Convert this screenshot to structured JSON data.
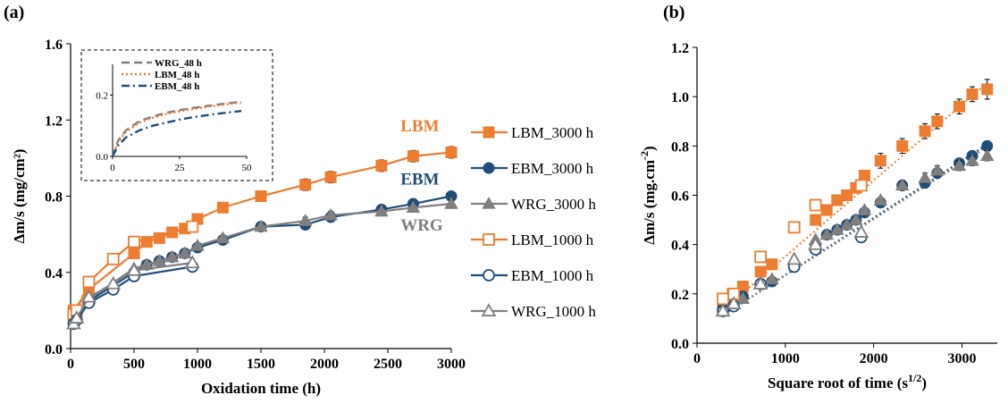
{
  "colors": {
    "LBM": "#ED7D31",
    "EBM": "#1F4E79",
    "WRG": "#7F7F7F",
    "axis": "#000000"
  },
  "chart_data": [
    {
      "panel_label": "(a)",
      "type": "scatter",
      "xlabel": "Oxidation time (h)",
      "ylabel": "Δm/s (mg/cm²)",
      "xlim": [
        0,
        3000
      ],
      "ylim": [
        0,
        1.6
      ],
      "xticks": [
        0,
        500,
        1000,
        1500,
        2000,
        2500,
        3000
      ],
      "yticks": [
        0.0,
        0.4,
        0.8,
        1.2,
        1.6
      ],
      "ytick_labels": [
        "0.0",
        "0.4",
        "0.8",
        "1.2",
        "1.6"
      ],
      "grid": false,
      "legend_position": "right",
      "annotations": [
        {
          "text": "LBM",
          "x": 2600,
          "y": 1.14,
          "color_key": "LBM"
        },
        {
          "text": "EBM",
          "x": 2600,
          "y": 0.86,
          "color_key": "EBM"
        },
        {
          "text": "WRG",
          "x": 2600,
          "y": 0.62,
          "color_key": "WRG"
        }
      ],
      "series": [
        {
          "name": "LBM_3000 h",
          "color_key": "LBM",
          "marker": "square-filled",
          "line": "solid",
          "x": [
            24,
            144,
            500,
            600,
            700,
            800,
            900,
            1000,
            1200,
            1500,
            1850,
            2050,
            2450,
            2700,
            3000
          ],
          "y": [
            0.2,
            0.31,
            0.5,
            0.56,
            0.58,
            0.61,
            0.63,
            0.68,
            0.74,
            0.8,
            0.86,
            0.9,
            0.96,
            1.01,
            1.03
          ],
          "err": [
            0,
            0.02,
            0.02,
            0.02,
            0.02,
            0.02,
            0.02,
            0.02,
            0.02,
            0.02,
            0.03,
            0.03,
            0.03,
            0.03,
            0.03
          ]
        },
        {
          "name": "EBM_3000 h",
          "color_key": "EBM",
          "marker": "circle-filled",
          "line": "solid",
          "x": [
            24,
            144,
            500,
            600,
            700,
            800,
            900,
            1000,
            1200,
            1500,
            1850,
            2050,
            2450,
            2700,
            3000
          ],
          "y": [
            0.14,
            0.25,
            0.4,
            0.44,
            0.46,
            0.48,
            0.5,
            0.53,
            0.57,
            0.64,
            0.65,
            0.69,
            0.73,
            0.76,
            0.8
          ],
          "err": [
            0,
            0.01,
            0.01,
            0.01,
            0.01,
            0.01,
            0.01,
            0.01,
            0.01,
            0.01,
            0.02,
            0.02,
            0.02,
            0.02,
            0.02
          ]
        },
        {
          "name": "WRG_3000 h",
          "color_key": "WRG",
          "marker": "triangle-filled",
          "line": "solid",
          "x": [
            24,
            144,
            500,
            600,
            700,
            800,
            900,
            1000,
            1200,
            1500,
            1850,
            2050,
            2450,
            2700,
            3000
          ],
          "y": [
            0.13,
            0.26,
            0.42,
            0.44,
            0.46,
            0.48,
            0.5,
            0.54,
            0.58,
            0.64,
            0.67,
            0.7,
            0.72,
            0.74,
            0.76
          ],
          "err": [
            0,
            0.01,
            0.01,
            0.01,
            0.01,
            0.01,
            0.01,
            0.01,
            0.01,
            0.01,
            0.02,
            0.02,
            0.02,
            0.02,
            0.02
          ]
        },
        {
          "name": "LBM_1000 h",
          "color_key": "LBM",
          "marker": "square-open",
          "line": "solid",
          "x": [
            24,
            48,
            144,
            336,
            500,
            960
          ],
          "y": [
            0.18,
            0.2,
            0.35,
            0.47,
            0.56,
            0.64
          ],
          "err": [
            0.01,
            0.01,
            0.02,
            0.02,
            0.02,
            0.02
          ]
        },
        {
          "name": "EBM_1000 h",
          "color_key": "EBM",
          "marker": "circle-open",
          "line": "solid",
          "x": [
            24,
            48,
            144,
            336,
            500,
            960
          ],
          "y": [
            0.13,
            0.15,
            0.24,
            0.31,
            0.38,
            0.43
          ],
          "err": [
            0.01,
            0.01,
            0.01,
            0.01,
            0.01,
            0.01
          ]
        },
        {
          "name": "WRG_1000 h",
          "color_key": "WRG",
          "marker": "triangle-open",
          "line": "solid",
          "x": [
            24,
            48,
            144,
            336,
            500,
            960
          ],
          "y": [
            0.13,
            0.16,
            0.27,
            0.34,
            0.41,
            0.45
          ],
          "err": [
            0.01,
            0.01,
            0.01,
            0.01,
            0.01,
            0.01
          ]
        }
      ],
      "inset": {
        "type": "line",
        "xlim": [
          0,
          50
        ],
        "ylim": [
          0,
          0.3
        ],
        "xticks": [
          0,
          25,
          50
        ],
        "yticks": [
          0.0,
          0.2
        ],
        "ytick_labels": [
          "0.0",
          "0.2"
        ],
        "legend_position": "top",
        "series": [
          {
            "name": "WRG_48 h",
            "color_key": "WRG",
            "line": "dashed",
            "x": [
              0,
              2,
              5,
              10,
              15,
              20,
              25,
              30,
              35,
              40,
              48
            ],
            "y": [
              0.0,
              0.05,
              0.085,
              0.115,
              0.13,
              0.142,
              0.151,
              0.158,
              0.164,
              0.17,
              0.178
            ]
          },
          {
            "name": "LBM_48 h",
            "color_key": "LBM",
            "line": "dotted",
            "x": [
              0,
              2,
              5,
              10,
              15,
              20,
              25,
              30,
              35,
              40,
              48
            ],
            "y": [
              0.0,
              0.048,
              0.08,
              0.11,
              0.126,
              0.138,
              0.147,
              0.155,
              0.161,
              0.167,
              0.176
            ]
          },
          {
            "name": "EBM_48 h",
            "color_key": "EBM",
            "line": "dashdot",
            "x": [
              0,
              2,
              5,
              10,
              15,
              20,
              25,
              30,
              35,
              40,
              48
            ],
            "y": [
              0.0,
              0.035,
              0.062,
              0.085,
              0.1,
              0.11,
              0.12,
              0.128,
              0.134,
              0.14,
              0.148
            ]
          }
        ]
      }
    },
    {
      "panel_label": "(b)",
      "type": "scatter",
      "xlabel": "Square root of time (s",
      "xlabel_sup": "1/2",
      "xlabel_end": ")",
      "ylabel": "Δm/s (mg.cm",
      "ylabel_sup": "-2",
      "ylabel_end": ")",
      "xlim": [
        0,
        3400
      ],
      "ylim": [
        0,
        1.2
      ],
      "xticks": [
        0,
        1000,
        2000,
        3000
      ],
      "yticks": [
        0.0,
        0.2,
        0.4,
        0.6,
        0.8,
        1.0,
        1.2
      ],
      "ytick_labels": [
        "0.0",
        "0.2",
        "0.4",
        "0.6",
        "0.8",
        "1.0",
        "1.2"
      ],
      "grid": false,
      "series": [
        {
          "name": "LBM_3000 h",
          "color_key": "LBM",
          "marker": "square-filled",
          "x": [
            294,
            403,
            520,
            720,
            849,
            1342,
            1470,
            1587,
            1697,
            1800,
            1897,
            2078,
            2324,
            2581,
            2720,
            2970,
            3117,
            3286
          ],
          "y": [
            0.16,
            0.2,
            0.23,
            0.29,
            0.32,
            0.5,
            0.54,
            0.58,
            0.6,
            0.63,
            0.68,
            0.74,
            0.8,
            0.86,
            0.9,
            0.96,
            1.01,
            1.03
          ],
          "err": [
            0,
            0,
            0,
            0,
            0,
            0,
            0.02,
            0.02,
            0.02,
            0.02,
            0.02,
            0.03,
            0.03,
            0.03,
            0.03,
            0.03,
            0.03,
            0.04
          ]
        },
        {
          "name": "EBM_3000 h",
          "color_key": "EBM",
          "marker": "circle-filled",
          "x": [
            294,
            403,
            520,
            720,
            849,
            1342,
            1470,
            1587,
            1697,
            1800,
            1897,
            2078,
            2324,
            2581,
            2720,
            2970,
            3117,
            3286
          ],
          "y": [
            0.14,
            0.16,
            0.19,
            0.24,
            0.25,
            0.4,
            0.44,
            0.46,
            0.48,
            0.5,
            0.53,
            0.57,
            0.64,
            0.65,
            0.69,
            0.73,
            0.76,
            0.8
          ],
          "err": [
            0,
            0,
            0,
            0,
            0,
            0,
            0.01,
            0.01,
            0.01,
            0.01,
            0.01,
            0.01,
            0.02,
            0.02,
            0.02,
            0.02,
            0.02,
            0.02
          ]
        },
        {
          "name": "WRG_3000 h",
          "color_key": "WRG",
          "marker": "triangle-filled",
          "x": [
            294,
            403,
            520,
            720,
            849,
            1342,
            1470,
            1587,
            1697,
            1800,
            1897,
            2078,
            2324,
            2581,
            2720,
            2970,
            3117,
            3286
          ],
          "y": [
            0.13,
            0.16,
            0.18,
            0.24,
            0.26,
            0.42,
            0.44,
            0.46,
            0.48,
            0.5,
            0.54,
            0.58,
            0.64,
            0.67,
            0.7,
            0.72,
            0.74,
            0.76
          ],
          "err": [
            0,
            0,
            0,
            0,
            0,
            0,
            0.01,
            0.01,
            0.01,
            0.01,
            0.01,
            0.01,
            0.02,
            0.02,
            0.02,
            0.02,
            0.02,
            0.02
          ]
        },
        {
          "name": "LBM_1000 h",
          "color_key": "LBM",
          "marker": "square-open",
          "x": [
            294,
            416,
            720,
            1100,
            1342,
            1859
          ],
          "y": [
            0.18,
            0.2,
            0.35,
            0.47,
            0.56,
            0.64
          ],
          "err": [
            0,
            0,
            0.02,
            0.02,
            0.02,
            0.02
          ]
        },
        {
          "name": "EBM_1000 h",
          "color_key": "EBM",
          "marker": "circle-open",
          "x": [
            294,
            416,
            720,
            1100,
            1342,
            1859
          ],
          "y": [
            0.13,
            0.15,
            0.24,
            0.31,
            0.38,
            0.43
          ],
          "err": [
            0,
            0,
            0,
            0,
            0,
            0
          ]
        },
        {
          "name": "WRG_1000 h",
          "color_key": "WRG",
          "marker": "triangle-open",
          "x": [
            294,
            416,
            720,
            1100,
            1342,
            1859
          ],
          "y": [
            0.13,
            0.16,
            0.24,
            0.34,
            0.4,
            0.45
          ],
          "err": [
            0,
            0,
            0,
            0,
            0,
            0
          ]
        }
      ],
      "trendlines": [
        {
          "color_key": "LBM",
          "line": "dotted",
          "x": [
            280,
            3300
          ],
          "y": [
            0.13,
            1.06
          ]
        },
        {
          "color_key": "EBM",
          "line": "dotted",
          "x": [
            280,
            3300
          ],
          "y": [
            0.11,
            0.81
          ]
        },
        {
          "color_key": "WRG",
          "line": "dotted",
          "x": [
            280,
            3300
          ],
          "y": [
            0.11,
            0.8
          ]
        }
      ]
    }
  ]
}
